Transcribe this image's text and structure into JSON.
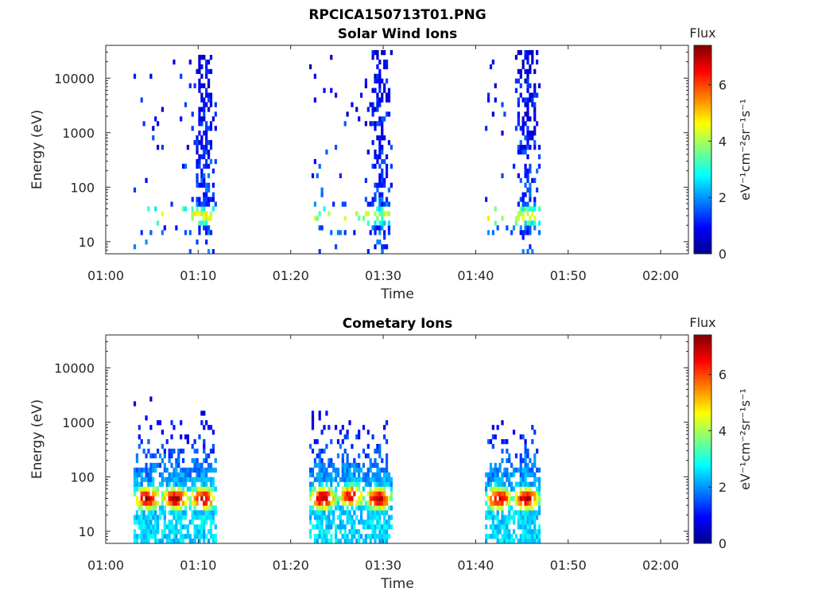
{
  "figure": {
    "title": "RPCICA150713T01.PNG"
  },
  "colorbar": {
    "label": "Flux",
    "unit_label": "eV⁻¹cm⁻²sr⁻¹s⁻¹",
    "range": [
      0,
      7.4
    ],
    "ticks": [
      "0",
      "2",
      "4",
      "6"
    ],
    "colormap": "jet"
  },
  "chart_data": [
    {
      "type": "heatmap",
      "title": "Solar Wind Ions",
      "xlabel": "Time",
      "ylabel": "Energy (eV)",
      "y_scale": "log",
      "xlim": [
        "01:00",
        "02:03"
      ],
      "ylim": [
        6,
        40000
      ],
      "x_ticks": [
        "01:00",
        "01:10",
        "01:20",
        "01:30",
        "01:40",
        "01:50",
        "02:00"
      ],
      "y_ticks": [
        "10",
        "100",
        "1000",
        "10000"
      ],
      "z_label": "Flux",
      "zlim": [
        0,
        7.4
      ],
      "bursts": [
        {
          "time_range": [
            "01:03",
            "01:12"
          ],
          "core_energy_eV": 30,
          "core_flux": 4.5,
          "max_energy_eV": 25000
        },
        {
          "time_range": [
            "01:22",
            "01:31"
          ],
          "core_energy_eV": 30,
          "core_flux": 4.0,
          "max_energy_eV": 35000
        },
        {
          "time_range": [
            "01:41",
            "01:47"
          ],
          "core_energy_eV": 30,
          "core_flux": 4.5,
          "max_energy_eV": 35000
        }
      ]
    },
    {
      "type": "heatmap",
      "title": "Cometary Ions",
      "xlabel": "Time",
      "ylabel": "Energy (eV)",
      "y_scale": "log",
      "xlim": [
        "01:00",
        "02:03"
      ],
      "ylim": [
        6,
        40000
      ],
      "x_ticks": [
        "01:00",
        "01:10",
        "01:20",
        "01:30",
        "01:40",
        "01:50",
        "02:00"
      ],
      "y_ticks": [
        "10",
        "100",
        "1000",
        "10000"
      ],
      "z_label": "Flux",
      "zlim": [
        0,
        7.4
      ],
      "bursts": [
        {
          "time_range": [
            "01:03",
            "01:06"
          ],
          "core_energy_eV": 40,
          "core_flux": 7.0,
          "max_energy_eV": 4000
        },
        {
          "time_range": [
            "01:06",
            "01:09"
          ],
          "core_energy_eV": 40,
          "core_flux": 7.0,
          "max_energy_eV": 1000
        },
        {
          "time_range": [
            "01:09",
            "01:12"
          ],
          "core_energy_eV": 40,
          "core_flux": 7.0,
          "max_energy_eV": 1500
        },
        {
          "time_range": [
            "01:22",
            "01:25"
          ],
          "core_energy_eV": 40,
          "core_flux": 7.0,
          "max_energy_eV": 1500
        },
        {
          "time_range": [
            "01:25",
            "01:28"
          ],
          "core_energy_eV": 45,
          "core_flux": 6.5,
          "max_energy_eV": 1000
        },
        {
          "time_range": [
            "01:28",
            "01:31"
          ],
          "core_energy_eV": 40,
          "core_flux": 7.0,
          "max_energy_eV": 1000
        },
        {
          "time_range": [
            "01:41",
            "01:44"
          ],
          "core_energy_eV": 40,
          "core_flux": 7.0,
          "max_energy_eV": 1200
        },
        {
          "time_range": [
            "01:44",
            "01:47"
          ],
          "core_energy_eV": 40,
          "core_flux": 7.0,
          "max_energy_eV": 1000
        }
      ]
    }
  ]
}
